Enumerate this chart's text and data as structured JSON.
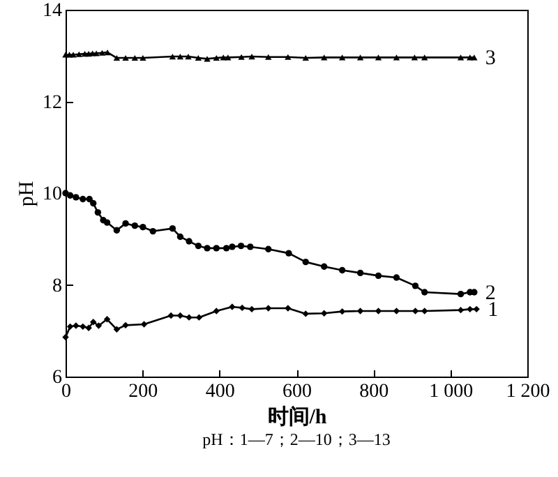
{
  "chart_data": {
    "type": "line",
    "xlabel": "时间/h",
    "ylabel": "pH",
    "annotations": [
      "pH：1—7；2—10；3—13"
    ],
    "xlim": [
      0,
      1200
    ],
    "xticks": [
      0,
      200,
      400,
      600,
      800,
      {
        "value": 1000,
        "label": "1 000"
      },
      {
        "value": 1200,
        "label": "1 200"
      }
    ],
    "ylim": [
      6,
      14
    ],
    "yticks": [
      6,
      8,
      10,
      12,
      14
    ],
    "grid": false,
    "line_style": "solid",
    "series": [
      {
        "name": "1",
        "color": "#000000",
        "marker": "diamond",
        "x": [
          0,
          12,
          27,
          45,
          60,
          72,
          86,
          108,
          133,
          156,
          204,
          274,
          298,
          321,
          347,
          392,
          433,
          459,
          484,
          527,
          578,
          624,
          672,
          719,
          766,
          813,
          860,
          909,
          933,
          1027,
          1051,
          1068
        ],
        "values": [
          6.86,
          7.09,
          7.11,
          7.09,
          7.06,
          7.19,
          7.11,
          7.25,
          7.03,
          7.12,
          7.14,
          7.33,
          7.33,
          7.29,
          7.29,
          7.43,
          7.52,
          7.5,
          7.47,
          7.49,
          7.49,
          7.37,
          7.38,
          7.42,
          7.43,
          7.43,
          7.43,
          7.43,
          7.43,
          7.45,
          7.47,
          7.47
        ]
      },
      {
        "name": "2",
        "color": "#000000",
        "marker": "circle",
        "x": [
          0,
          12,
          27,
          45,
          62,
          72,
          84,
          98,
          108,
          133,
          156,
          180,
          201,
          227,
          278,
          298,
          321,
          345,
          368,
          392,
          418,
          433,
          456,
          480,
          527,
          580,
          624,
          672,
          719,
          766,
          813,
          860,
          909,
          933,
          1027,
          1051,
          1062
        ],
        "values": [
          10.0,
          9.95,
          9.91,
          9.87,
          9.87,
          9.78,
          9.58,
          9.41,
          9.36,
          9.19,
          9.34,
          9.29,
          9.26,
          9.17,
          9.23,
          9.05,
          8.95,
          8.85,
          8.8,
          8.8,
          8.8,
          8.83,
          8.85,
          8.83,
          8.78,
          8.69,
          8.5,
          8.4,
          8.32,
          8.26,
          8.2,
          8.16,
          7.98,
          7.84,
          7.8,
          7.84,
          7.84
        ]
      },
      {
        "name": "3",
        "color": "#000000",
        "marker": "triangle",
        "x": [
          0,
          10,
          20,
          35,
          50,
          60,
          70,
          80,
          95,
          109,
          133,
          156,
          180,
          201,
          278,
          298,
          319,
          345,
          368,
          392,
          410,
          422,
          457,
          484,
          527,
          578,
          624,
          672,
          719,
          766,
          813,
          860,
          907,
          933,
          1027,
          1051,
          1062
        ],
        "values": [
          13.02,
          13.02,
          13.02,
          13.03,
          13.04,
          13.04,
          13.05,
          13.05,
          13.06,
          13.07,
          12.95,
          12.95,
          12.95,
          12.95,
          12.98,
          12.98,
          12.98,
          12.95,
          12.93,
          12.95,
          12.96,
          12.96,
          12.97,
          12.98,
          12.97,
          12.97,
          12.95,
          12.96,
          12.96,
          12.96,
          12.96,
          12.96,
          12.96,
          12.96,
          12.96,
          12.96,
          12.96
        ]
      }
    ]
  }
}
